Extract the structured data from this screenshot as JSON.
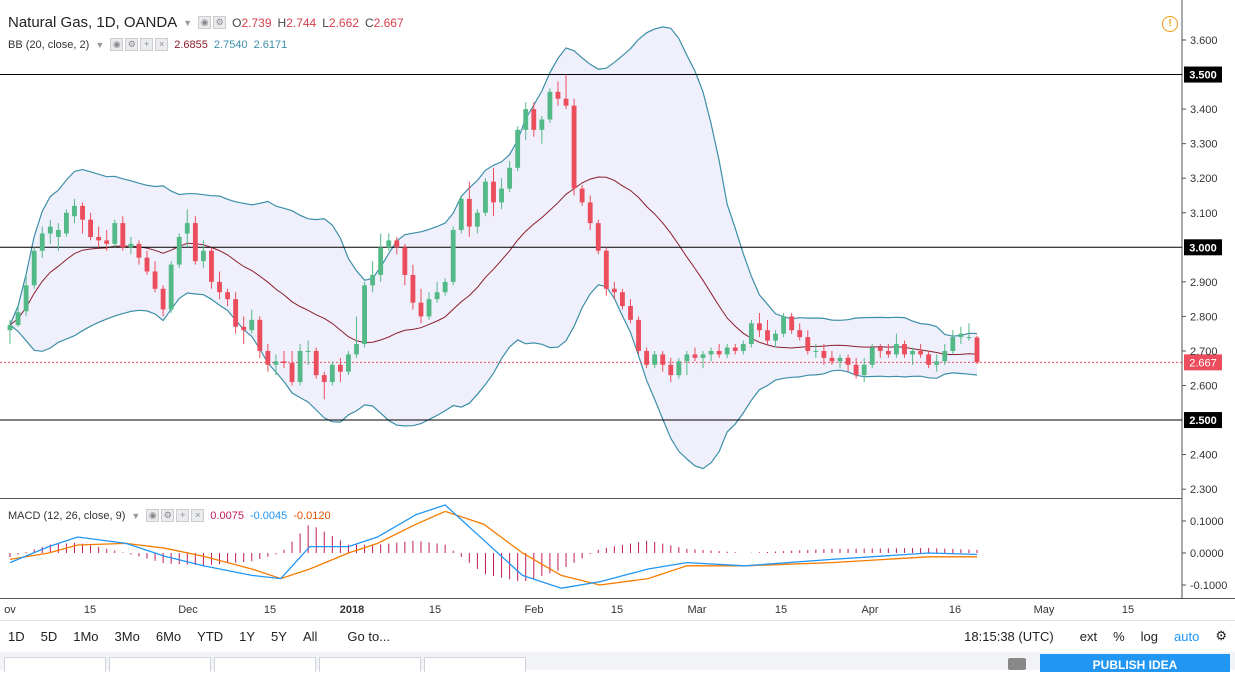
{
  "header": {
    "symbol": "Natural Gas, 1D, OANDA",
    "open_label": "O",
    "open": "2.739",
    "high_label": "H",
    "high": "2.744",
    "low_label": "L",
    "low": "2.662",
    "close_label": "C",
    "close": "2.667"
  },
  "bb_legend": {
    "label": "BB (20, close, 2)",
    "basis": "2.6855",
    "upper": "2.7540",
    "lower": "2.6171"
  },
  "macd_legend": {
    "label": "MACD (12, 26, close, 9)",
    "hist": "0.0075",
    "macd": "-0.0045",
    "signal": "-0.0120"
  },
  "toolbar": {
    "periods": [
      "1D",
      "5D",
      "1Mo",
      "3Mo",
      "6Mo",
      "YTD",
      "1Y",
      "5Y",
      "All"
    ],
    "goto": "Go to...",
    "time": "18:15:38 (UTC)",
    "ext": "ext",
    "percent": "%",
    "log": "log",
    "auto": "auto"
  },
  "publish_label": "PUBLISH IDEA",
  "colors": {
    "up": "#53b987",
    "down": "#eb4d5c",
    "bb_band": "#3c8fa8",
    "bb_basis": "#8b1e2b",
    "bb_fill": "#ececfc",
    "macd": "#2196f3",
    "signal": "#f57c00",
    "hist": "#c2185b",
    "hline": "#000000",
    "price_line": "#eb4d5c"
  },
  "chart_data": {
    "type": "candlestick",
    "y_ticks": [
      "3.600",
      "3.400",
      "3.300",
      "3.200",
      "3.100",
      "2.900",
      "2.800",
      "2.700",
      "2.600",
      "2.400",
      "2.300"
    ],
    "x_labels": [
      "ov",
      "15",
      "Dec",
      "15",
      "2018",
      "15",
      "Feb",
      "15",
      "Mar",
      "15",
      "Apr",
      "16",
      "May",
      "15"
    ],
    "ylim": [
      2.28,
      3.68
    ],
    "horizontal_lines": [
      3.5,
      3.0,
      2.5
    ],
    "last_price": 2.667,
    "candles": [
      {
        "o": 2.76,
        "h": 2.79,
        "l": 2.72,
        "c": 2.775
      },
      {
        "o": 2.775,
        "h": 2.83,
        "l": 2.77,
        "c": 2.812
      },
      {
        "o": 2.815,
        "h": 2.92,
        "l": 2.8,
        "c": 2.89
      },
      {
        "o": 2.89,
        "h": 3.0,
        "l": 2.88,
        "c": 2.99
      },
      {
        "o": 2.99,
        "h": 3.06,
        "l": 2.97,
        "c": 3.04
      },
      {
        "o": 3.04,
        "h": 3.08,
        "l": 3.01,
        "c": 3.06
      },
      {
        "o": 3.03,
        "h": 3.07,
        "l": 2.99,
        "c": 3.05
      },
      {
        "o": 3.04,
        "h": 3.11,
        "l": 3.03,
        "c": 3.1
      },
      {
        "o": 3.09,
        "h": 3.14,
        "l": 3.07,
        "c": 3.12
      },
      {
        "o": 3.12,
        "h": 3.13,
        "l": 3.04,
        "c": 3.08
      },
      {
        "o": 3.08,
        "h": 3.1,
        "l": 3.02,
        "c": 3.03
      },
      {
        "o": 3.03,
        "h": 3.06,
        "l": 3.0,
        "c": 3.02
      },
      {
        "o": 3.02,
        "h": 3.05,
        "l": 2.99,
        "c": 3.01
      },
      {
        "o": 3.01,
        "h": 3.08,
        "l": 3.0,
        "c": 3.07
      },
      {
        "o": 3.07,
        "h": 3.09,
        "l": 2.99,
        "c": 3.0
      },
      {
        "o": 3.0,
        "h": 3.03,
        "l": 2.98,
        "c": 3.01
      },
      {
        "o": 3.01,
        "h": 3.02,
        "l": 2.95,
        "c": 2.97
      },
      {
        "o": 2.97,
        "h": 2.99,
        "l": 2.92,
        "c": 2.93
      },
      {
        "o": 2.93,
        "h": 2.96,
        "l": 2.87,
        "c": 2.88
      },
      {
        "o": 2.88,
        "h": 2.89,
        "l": 2.8,
        "c": 2.82
      },
      {
        "o": 2.82,
        "h": 2.96,
        "l": 2.81,
        "c": 2.95
      },
      {
        "o": 2.95,
        "h": 3.04,
        "l": 2.94,
        "c": 3.03
      },
      {
        "o": 3.04,
        "h": 3.11,
        "l": 3.0,
        "c": 3.07
      },
      {
        "o": 3.07,
        "h": 3.09,
        "l": 2.95,
        "c": 2.96
      },
      {
        "o": 2.96,
        "h": 3.02,
        "l": 2.94,
        "c": 2.99
      },
      {
        "o": 2.99,
        "h": 3.0,
        "l": 2.88,
        "c": 2.9
      },
      {
        "o": 2.9,
        "h": 2.93,
        "l": 2.85,
        "c": 2.87
      },
      {
        "o": 2.87,
        "h": 2.88,
        "l": 2.83,
        "c": 2.85
      },
      {
        "o": 2.85,
        "h": 2.87,
        "l": 2.75,
        "c": 2.77
      },
      {
        "o": 2.77,
        "h": 2.8,
        "l": 2.72,
        "c": 2.76
      },
      {
        "o": 2.76,
        "h": 2.82,
        "l": 2.75,
        "c": 2.79
      },
      {
        "o": 2.79,
        "h": 2.8,
        "l": 2.68,
        "c": 2.7
      },
      {
        "o": 2.7,
        "h": 2.72,
        "l": 2.64,
        "c": 2.66
      },
      {
        "o": 2.66,
        "h": 2.69,
        "l": 2.63,
        "c": 2.67
      },
      {
        "o": 2.67,
        "h": 2.7,
        "l": 2.65,
        "c": 2.665
      },
      {
        "o": 2.665,
        "h": 2.7,
        "l": 2.6,
        "c": 2.61
      },
      {
        "o": 2.61,
        "h": 2.72,
        "l": 2.6,
        "c": 2.7
      },
      {
        "o": 2.7,
        "h": 2.73,
        "l": 2.66,
        "c": 2.7
      },
      {
        "o": 2.7,
        "h": 2.71,
        "l": 2.62,
        "c": 2.63
      },
      {
        "o": 2.63,
        "h": 2.64,
        "l": 2.56,
        "c": 2.61
      },
      {
        "o": 2.61,
        "h": 2.67,
        "l": 2.6,
        "c": 2.66
      },
      {
        "o": 2.66,
        "h": 2.68,
        "l": 2.61,
        "c": 2.64
      },
      {
        "o": 2.64,
        "h": 2.7,
        "l": 2.63,
        "c": 2.69
      },
      {
        "o": 2.69,
        "h": 2.8,
        "l": 2.68,
        "c": 2.72
      },
      {
        "o": 2.72,
        "h": 2.9,
        "l": 2.71,
        "c": 2.89
      },
      {
        "o": 2.89,
        "h": 2.96,
        "l": 2.87,
        "c": 2.92
      },
      {
        "o": 2.92,
        "h": 3.04,
        "l": 2.9,
        "c": 3.0
      },
      {
        "o": 3.0,
        "h": 3.04,
        "l": 2.99,
        "c": 3.02
      },
      {
        "o": 3.02,
        "h": 3.03,
        "l": 2.98,
        "c": 3.0
      },
      {
        "o": 3.0,
        "h": 3.01,
        "l": 2.89,
        "c": 2.92
      },
      {
        "o": 2.92,
        "h": 2.95,
        "l": 2.82,
        "c": 2.84
      },
      {
        "o": 2.84,
        "h": 2.88,
        "l": 2.78,
        "c": 2.8
      },
      {
        "o": 2.8,
        "h": 2.87,
        "l": 2.79,
        "c": 2.85
      },
      {
        "o": 2.85,
        "h": 2.9,
        "l": 2.84,
        "c": 2.87
      },
      {
        "o": 2.87,
        "h": 2.91,
        "l": 2.86,
        "c": 2.9
      },
      {
        "o": 2.9,
        "h": 3.06,
        "l": 2.89,
        "c": 3.05
      },
      {
        "o": 3.05,
        "h": 3.15,
        "l": 3.04,
        "c": 3.14
      },
      {
        "o": 3.14,
        "h": 3.19,
        "l": 3.03,
        "c": 3.06
      },
      {
        "o": 3.06,
        "h": 3.11,
        "l": 3.04,
        "c": 3.1
      },
      {
        "o": 3.1,
        "h": 3.2,
        "l": 3.09,
        "c": 3.19
      },
      {
        "o": 3.19,
        "h": 3.23,
        "l": 3.09,
        "c": 3.13
      },
      {
        "o": 3.13,
        "h": 3.2,
        "l": 3.11,
        "c": 3.17
      },
      {
        "o": 3.17,
        "h": 3.25,
        "l": 3.16,
        "c": 3.23
      },
      {
        "o": 3.23,
        "h": 3.35,
        "l": 3.22,
        "c": 3.34
      },
      {
        "o": 3.34,
        "h": 3.42,
        "l": 3.31,
        "c": 3.4
      },
      {
        "o": 3.4,
        "h": 3.42,
        "l": 3.32,
        "c": 3.34
      },
      {
        "o": 3.34,
        "h": 3.38,
        "l": 3.3,
        "c": 3.37
      },
      {
        "o": 3.37,
        "h": 3.46,
        "l": 3.36,
        "c": 3.45
      },
      {
        "o": 3.45,
        "h": 3.48,
        "l": 3.41,
        "c": 3.43
      },
      {
        "o": 3.43,
        "h": 3.5,
        "l": 3.4,
        "c": 3.41
      },
      {
        "o": 3.41,
        "h": 3.43,
        "l": 3.15,
        "c": 3.17
      },
      {
        "o": 3.17,
        "h": 3.18,
        "l": 3.12,
        "c": 3.13
      },
      {
        "o": 3.13,
        "h": 3.15,
        "l": 3.05,
        "c": 3.07
      },
      {
        "o": 3.07,
        "h": 3.08,
        "l": 2.98,
        "c": 2.99
      },
      {
        "o": 2.99,
        "h": 3.0,
        "l": 2.86,
        "c": 2.88
      },
      {
        "o": 2.88,
        "h": 2.9,
        "l": 2.85,
        "c": 2.87
      },
      {
        "o": 2.87,
        "h": 2.88,
        "l": 2.82,
        "c": 2.83
      },
      {
        "o": 2.83,
        "h": 2.85,
        "l": 2.78,
        "c": 2.79
      },
      {
        "o": 2.79,
        "h": 2.8,
        "l": 2.69,
        "c": 2.7
      },
      {
        "o": 2.7,
        "h": 2.71,
        "l": 2.65,
        "c": 2.66
      },
      {
        "o": 2.66,
        "h": 2.7,
        "l": 2.65,
        "c": 2.69
      },
      {
        "o": 2.69,
        "h": 2.7,
        "l": 2.64,
        "c": 2.66
      },
      {
        "o": 2.66,
        "h": 2.68,
        "l": 2.61,
        "c": 2.63
      },
      {
        "o": 2.63,
        "h": 2.68,
        "l": 2.62,
        "c": 2.67
      },
      {
        "o": 2.67,
        "h": 2.7,
        "l": 2.63,
        "c": 2.69
      },
      {
        "o": 2.69,
        "h": 2.71,
        "l": 2.67,
        "c": 2.68
      },
      {
        "o": 2.68,
        "h": 2.7,
        "l": 2.65,
        "c": 2.69
      },
      {
        "o": 2.69,
        "h": 2.71,
        "l": 2.67,
        "c": 2.7
      },
      {
        "o": 2.7,
        "h": 2.72,
        "l": 2.68,
        "c": 2.69
      },
      {
        "o": 2.69,
        "h": 2.72,
        "l": 2.68,
        "c": 2.71
      },
      {
        "o": 2.71,
        "h": 2.72,
        "l": 2.69,
        "c": 2.7
      },
      {
        "o": 2.7,
        "h": 2.73,
        "l": 2.69,
        "c": 2.72
      },
      {
        "o": 2.72,
        "h": 2.79,
        "l": 2.71,
        "c": 2.78
      },
      {
        "o": 2.78,
        "h": 2.81,
        "l": 2.74,
        "c": 2.76
      },
      {
        "o": 2.76,
        "h": 2.79,
        "l": 2.72,
        "c": 2.73
      },
      {
        "o": 2.73,
        "h": 2.76,
        "l": 2.71,
        "c": 2.75
      },
      {
        "o": 2.75,
        "h": 2.81,
        "l": 2.74,
        "c": 2.8
      },
      {
        "o": 2.8,
        "h": 2.81,
        "l": 2.75,
        "c": 2.76
      },
      {
        "o": 2.76,
        "h": 2.78,
        "l": 2.73,
        "c": 2.74
      },
      {
        "o": 2.74,
        "h": 2.76,
        "l": 2.69,
        "c": 2.7
      },
      {
        "o": 2.7,
        "h": 2.72,
        "l": 2.68,
        "c": 2.7
      },
      {
        "o": 2.7,
        "h": 2.72,
        "l": 2.66,
        "c": 2.68
      },
      {
        "o": 2.68,
        "h": 2.7,
        "l": 2.66,
        "c": 2.67
      },
      {
        "o": 2.67,
        "h": 2.69,
        "l": 2.65,
        "c": 2.68
      },
      {
        "o": 2.68,
        "h": 2.69,
        "l": 2.64,
        "c": 2.66
      },
      {
        "o": 2.66,
        "h": 2.68,
        "l": 2.62,
        "c": 2.63
      },
      {
        "o": 2.63,
        "h": 2.68,
        "l": 2.61,
        "c": 2.66
      },
      {
        "o": 2.66,
        "h": 2.72,
        "l": 2.65,
        "c": 2.71
      },
      {
        "o": 2.71,
        "h": 2.72,
        "l": 2.68,
        "c": 2.7
      },
      {
        "o": 2.7,
        "h": 2.72,
        "l": 2.68,
        "c": 2.69
      },
      {
        "o": 2.69,
        "h": 2.75,
        "l": 2.68,
        "c": 2.72
      },
      {
        "o": 2.72,
        "h": 2.73,
        "l": 2.68,
        "c": 2.69
      },
      {
        "o": 2.69,
        "h": 2.71,
        "l": 2.66,
        "c": 2.7
      },
      {
        "o": 2.7,
        "h": 2.72,
        "l": 2.68,
        "c": 2.69
      },
      {
        "o": 2.69,
        "h": 2.7,
        "l": 2.65,
        "c": 2.66
      },
      {
        "o": 2.66,
        "h": 2.69,
        "l": 2.64,
        "c": 2.67
      },
      {
        "o": 2.67,
        "h": 2.72,
        "l": 2.66,
        "c": 2.7
      },
      {
        "o": 2.7,
        "h": 2.76,
        "l": 2.69,
        "c": 2.74
      },
      {
        "o": 2.74,
        "h": 2.77,
        "l": 2.72,
        "c": 2.75
      },
      {
        "o": 2.74,
        "h": 2.78,
        "l": 2.73,
        "c": 2.74
      },
      {
        "o": 2.739,
        "h": 2.744,
        "l": 2.662,
        "c": 2.667
      }
    ],
    "macd_ylim": [
      -0.13,
      0.16
    ],
    "macd_ticks": [
      "0.1000",
      "0.0000",
      "-0.1000"
    ],
    "macd": [
      {
        "t": 0,
        "m": -0.03,
        "s": -0.02
      },
      {
        "t": 0.04,
        "m": 0.02,
        "s": 0.0
      },
      {
        "t": 0.07,
        "m": 0.05,
        "s": 0.025
      },
      {
        "t": 0.12,
        "m": 0.03,
        "s": 0.03
      },
      {
        "t": 0.16,
        "m": -0.01,
        "s": 0.015
      },
      {
        "t": 0.2,
        "m": -0.04,
        "s": -0.01
      },
      {
        "t": 0.25,
        "m": -0.07,
        "s": -0.05
      },
      {
        "t": 0.28,
        "m": -0.08,
        "s": -0.08
      },
      {
        "t": 0.31,
        "m": 0.02,
        "s": -0.05
      },
      {
        "t": 0.35,
        "m": 0.02,
        "s": 0.0
      },
      {
        "t": 0.38,
        "m": 0.05,
        "s": 0.03
      },
      {
        "t": 0.42,
        "m": 0.12,
        "s": 0.09
      },
      {
        "t": 0.45,
        "m": 0.15,
        "s": 0.13
      },
      {
        "t": 0.49,
        "m": 0.04,
        "s": 0.09
      },
      {
        "t": 0.53,
        "m": -0.07,
        "s": 0.0
      },
      {
        "t": 0.57,
        "m": -0.11,
        "s": -0.07
      },
      {
        "t": 0.61,
        "m": -0.09,
        "s": -0.1
      },
      {
        "t": 0.66,
        "m": -0.05,
        "s": -0.08
      },
      {
        "t": 0.7,
        "m": -0.03,
        "s": -0.04
      },
      {
        "t": 0.76,
        "m": -0.04,
        "s": -0.04
      },
      {
        "t": 0.85,
        "m": -0.02,
        "s": -0.03
      },
      {
        "t": 0.95,
        "m": 0.0,
        "s": -0.012
      },
      {
        "t": 1.0,
        "m": -0.0045,
        "s": -0.012
      }
    ]
  }
}
